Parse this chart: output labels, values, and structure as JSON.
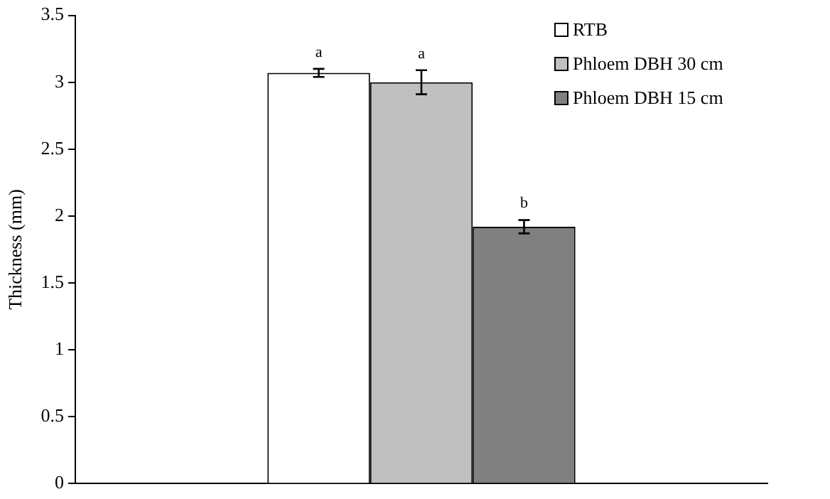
{
  "chart_data": {
    "type": "bar",
    "ylabel": "Thickness (mm)",
    "categories": [
      null
    ],
    "series": [
      {
        "name": "RTB",
        "color": "#ffffff",
        "values": [
          3.07
        ],
        "errors": [
          0.03
        ]
      },
      {
        "name": "Phloem DBH 30 cm",
        "color": "#c0c0c0",
        "values": [
          3.0
        ],
        "errors": [
          0.09
        ]
      },
      {
        "name": "Phloem DBH 15 cm",
        "color": "#808080",
        "values": [
          1.92
        ],
        "errors": [
          0.05
        ]
      }
    ],
    "ylim": [
      0,
      3.5
    ],
    "yticks": [
      0,
      0.5,
      1,
      1.5,
      2,
      2.5,
      3,
      3.5
    ],
    "grid": false,
    "legend": "top right",
    "annotations": [
      "a",
      "a",
      "b"
    ]
  }
}
